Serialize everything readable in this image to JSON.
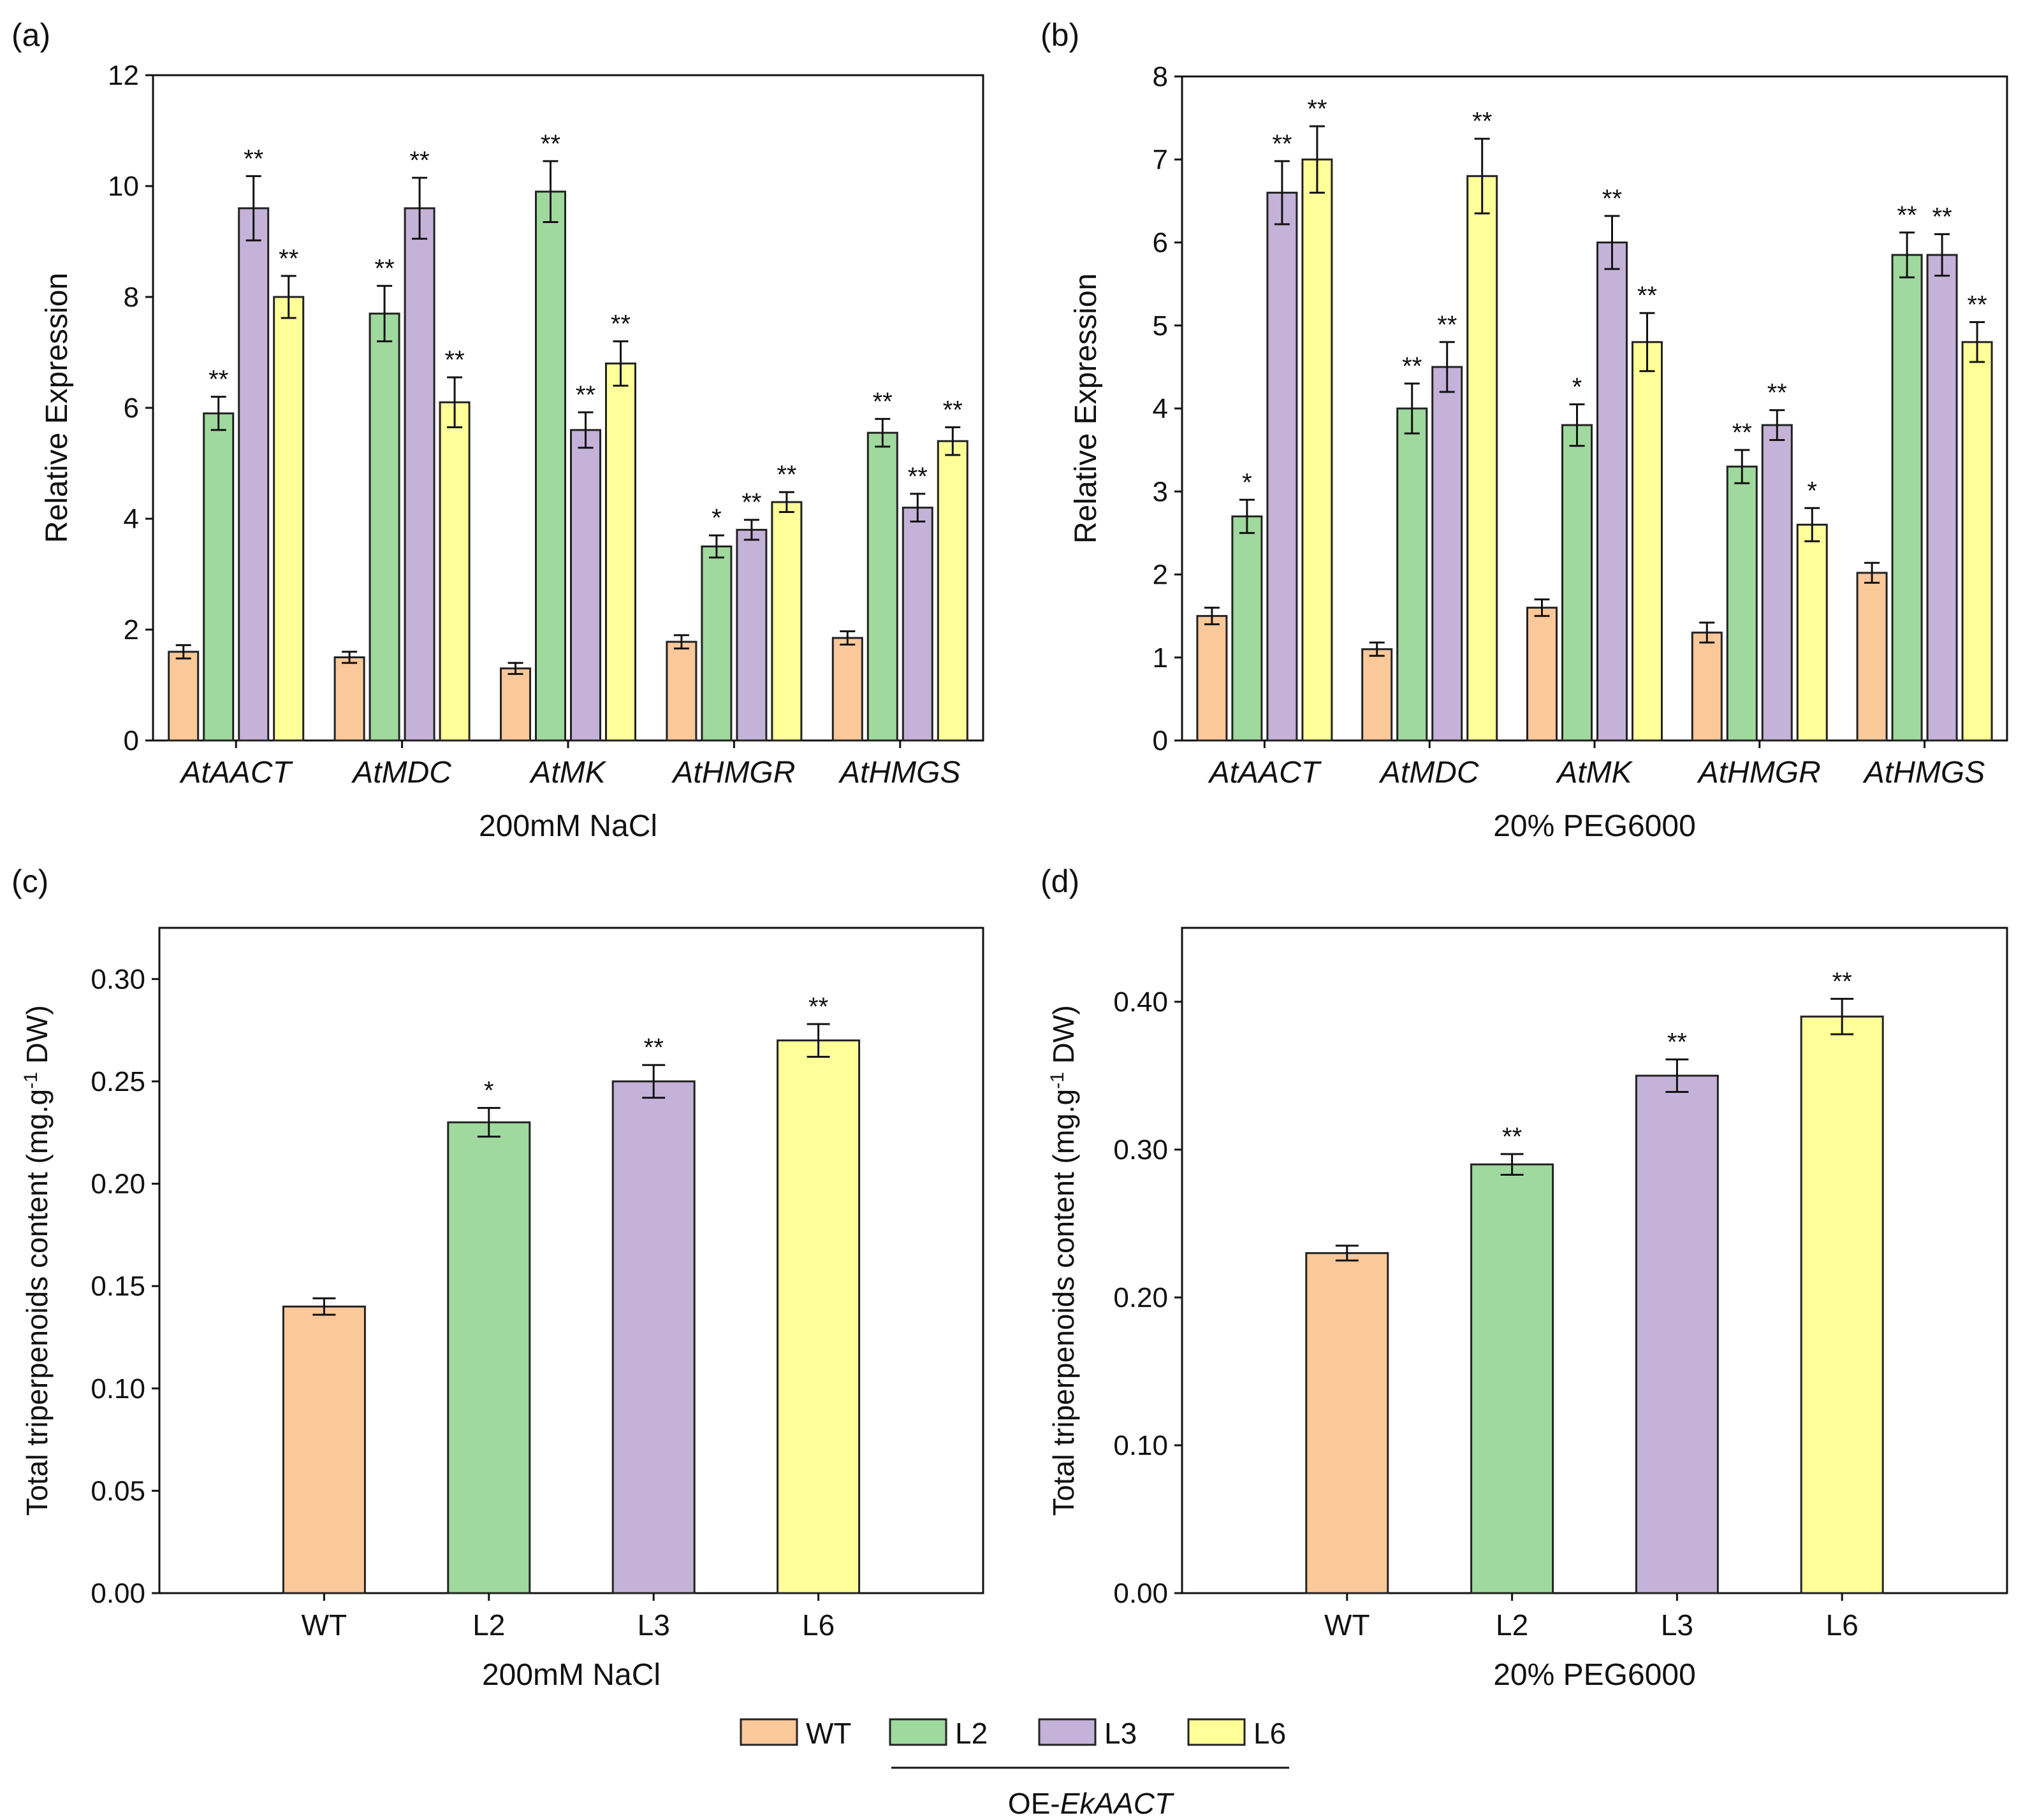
{
  "figure": {
    "series": [
      {
        "key": "WT",
        "label": "WT",
        "color": "#FBC89A"
      },
      {
        "key": "L2",
        "label": "L2",
        "color": "#9FD99D"
      },
      {
        "key": "L3",
        "label": "L3",
        "color": "#C4B2D8"
      },
      {
        "key": "L6",
        "label": "L6",
        "color": "#FFFF99"
      }
    ],
    "legend_group_prefix": "OE-",
    "legend_group_gene": "EkAACT"
  },
  "chart_data": [
    {
      "panel": "(a)",
      "type": "bar",
      "categories": [
        "AtAACT",
        "AtMDC",
        "AtMK",
        "AtHMGR",
        "AtHMGS"
      ],
      "categories_italic": true,
      "ylabel": "Relative Expression",
      "xlabel": "200mM NaCl",
      "ylim": [
        0,
        12
      ],
      "yticks": [
        "0",
        "2",
        "4",
        "6",
        "8",
        "10",
        "12"
      ],
      "series": [
        {
          "name": "WT",
          "values": [
            1.6,
            1.5,
            1.3,
            1.78,
            1.85
          ],
          "errors": [
            0.12,
            0.1,
            0.1,
            0.12,
            0.12
          ],
          "sig": [
            "",
            "",
            "",
            "",
            ""
          ]
        },
        {
          "name": "L2",
          "values": [
            5.9,
            7.7,
            9.9,
            3.5,
            5.55
          ],
          "errors": [
            0.3,
            0.5,
            0.55,
            0.2,
            0.25
          ],
          "sig": [
            "**",
            "**",
            "**",
            "*",
            "**"
          ]
        },
        {
          "name": "L3",
          "values": [
            9.6,
            9.6,
            5.6,
            3.8,
            4.2
          ],
          "errors": [
            0.58,
            0.55,
            0.32,
            0.18,
            0.25
          ],
          "sig": [
            "**",
            "**",
            "**",
            "**",
            "**"
          ]
        },
        {
          "name": "L6",
          "values": [
            8.0,
            6.1,
            6.8,
            4.3,
            5.4
          ],
          "errors": [
            0.38,
            0.45,
            0.4,
            0.18,
            0.25
          ],
          "sig": [
            "**",
            "**",
            "**",
            "**",
            "**"
          ]
        }
      ]
    },
    {
      "panel": "(b)",
      "type": "bar",
      "categories": [
        "AtAACT",
        "AtMDC",
        "AtMK",
        "AtHMGR",
        "AtHMGS"
      ],
      "categories_italic": true,
      "ylabel": "Relative Expression",
      "xlabel": "20% PEG6000",
      "ylim": [
        0,
        8
      ],
      "yticks": [
        "0",
        "1",
        "2",
        "3",
        "4",
        "5",
        "6",
        "7",
        "8"
      ],
      "series": [
        {
          "name": "WT",
          "values": [
            1.5,
            1.1,
            1.6,
            1.3,
            2.02
          ],
          "errors": [
            0.1,
            0.08,
            0.1,
            0.12,
            0.12
          ],
          "sig": [
            "",
            "",
            "",
            "",
            ""
          ]
        },
        {
          "name": "L2",
          "values": [
            2.7,
            4.0,
            3.8,
            3.3,
            5.85
          ],
          "errors": [
            0.2,
            0.3,
            0.25,
            0.2,
            0.27
          ],
          "sig": [
            "*",
            "**",
            "*",
            "**",
            "**"
          ]
        },
        {
          "name": "L3",
          "values": [
            6.6,
            4.5,
            6.0,
            3.8,
            5.85
          ],
          "errors": [
            0.38,
            0.3,
            0.32,
            0.18,
            0.25
          ],
          "sig": [
            "**",
            "**",
            "**",
            "**",
            "**"
          ]
        },
        {
          "name": "L6",
          "values": [
            7.0,
            6.8,
            4.8,
            2.6,
            4.8
          ],
          "errors": [
            0.4,
            0.45,
            0.35,
            0.2,
            0.24
          ],
          "sig": [
            "**",
            "**",
            "**",
            "*",
            "**"
          ]
        }
      ]
    },
    {
      "panel": "(c)",
      "type": "bar",
      "categories": [
        "WT",
        "L2",
        "L3",
        "L6"
      ],
      "categories_italic": false,
      "ylabel_main": "Total triperpenoids content (mg.g",
      "ylabel_sup": "-1",
      "ylabel_end": " DW)",
      "xlabel": "200mM NaCl",
      "ylim": [
        0,
        0.325
      ],
      "yticks": [
        "0.00",
        "0.05",
        "0.10",
        "0.15",
        "0.20",
        "0.25",
        "0.30"
      ],
      "ytick_values": [
        0,
        0.05,
        0.1,
        0.15,
        0.2,
        0.25,
        0.3
      ],
      "values": [
        0.14,
        0.23,
        0.25,
        0.27
      ],
      "errors": [
        0.004,
        0.007,
        0.008,
        0.008
      ],
      "sig": [
        "",
        "*",
        "**",
        "**"
      ]
    },
    {
      "panel": "(d)",
      "type": "bar",
      "categories": [
        "WT",
        "L2",
        "L3",
        "L6"
      ],
      "categories_italic": false,
      "ylabel_main": "Total triperpenoids content (mg.g",
      "ylabel_sup": "-1",
      "ylabel_end": " DW)",
      "xlabel": "20% PEG6000",
      "ylim": [
        0,
        0.45
      ],
      "yticks": [
        "0.00",
        "0.10",
        "0.20",
        "0.30",
        "0.40"
      ],
      "ytick_values": [
        0,
        0.1,
        0.2,
        0.3,
        0.4
      ],
      "values": [
        0.23,
        0.29,
        0.35,
        0.39
      ],
      "errors": [
        0.005,
        0.007,
        0.011,
        0.012
      ],
      "sig": [
        "",
        "**",
        "**",
        "**"
      ]
    }
  ]
}
